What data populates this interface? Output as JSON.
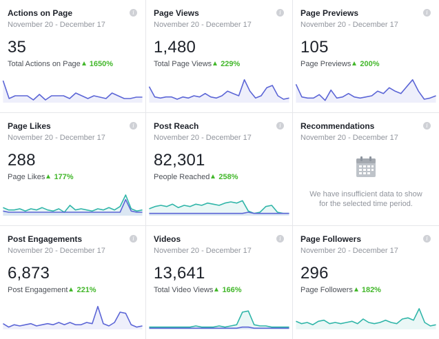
{
  "cards": [
    {
      "title": "Actions on Page",
      "date_range": "November 20 - December 17",
      "value": "35",
      "metric_label": "Total Actions on Page",
      "change": "1650%",
      "sparkline_series": [
        {
          "color": "#5b65d6",
          "values": [
            16,
            3,
            5,
            5,
            5,
            2,
            6,
            2,
            5,
            5,
            5,
            3,
            7,
            5,
            3,
            5,
            4,
            3,
            7,
            5,
            3,
            3,
            4,
            4
          ]
        }
      ],
      "ymax": 20
    },
    {
      "title": "Page Views",
      "date_range": "November 20 - December 17",
      "value": "1,480",
      "metric_label": "Total Page Views",
      "change": "229%",
      "sparkline_series": [
        {
          "color": "#5b65d6",
          "values": [
            14,
            5,
            4,
            5,
            5,
            3,
            5,
            4,
            6,
            5,
            8,
            5,
            4,
            6,
            10,
            8,
            6,
            20,
            10,
            4,
            6,
            13,
            15,
            6,
            3,
            4
          ]
        }
      ],
      "ymax": 24
    },
    {
      "title": "Page Previews",
      "date_range": "November 20 - December 17",
      "value": "105",
      "metric_label": "Page Previews",
      "change": "200%",
      "sparkline_series": [
        {
          "color": "#5b65d6",
          "values": [
            16,
            5,
            4,
            4,
            7,
            2,
            11,
            4,
            5,
            8,
            5,
            4,
            5,
            6,
            10,
            8,
            13,
            10,
            8,
            14,
            20,
            10,
            3,
            4,
            6
          ]
        }
      ],
      "ymax": 24
    },
    {
      "title": "Page Likes",
      "date_range": "November 20 - December 17",
      "value": "288",
      "metric_label": "Page Likes",
      "change": "177%",
      "sparkline_series": [
        {
          "color": "#2fb5a8",
          "values": [
            7,
            5,
            5,
            6,
            4,
            6,
            5,
            7,
            5,
            4,
            6,
            3,
            9,
            5,
            6,
            5,
            4,
            6,
            5,
            7,
            5,
            8,
            18,
            6,
            4,
            5
          ]
        },
        {
          "color": "#5b65d6",
          "values": [
            4,
            3,
            3,
            3,
            3,
            3,
            3,
            3,
            3,
            3,
            3,
            3,
            3,
            3,
            3,
            3,
            3,
            3,
            3,
            3,
            3,
            3,
            14,
            4,
            3,
            3
          ]
        }
      ],
      "ymax": 24
    },
    {
      "title": "Post Reach",
      "date_range": "November 20 - December 17",
      "value": "82,301",
      "metric_label": "People Reached",
      "change": "258%",
      "sparkline_series": [
        {
          "color": "#2fb5a8",
          "values": [
            6,
            8,
            9,
            8,
            10,
            7,
            9,
            8,
            10,
            9,
            11,
            10,
            9,
            11,
            12,
            11,
            13,
            4,
            2,
            3,
            8,
            9,
            3,
            2,
            2
          ]
        },
        {
          "color": "#5b65d6",
          "values": [
            2,
            2,
            2,
            2,
            2,
            2,
            2,
            2,
            2,
            2,
            2,
            2,
            2,
            2,
            2,
            2,
            2,
            3,
            2,
            2,
            2,
            2,
            2,
            2,
            2
          ]
        }
      ],
      "ymax": 24
    },
    {
      "title": "Recommendations",
      "date_range": "November 20 - December 17",
      "empty_message": "We have insufficient data to show for the selected time period.",
      "icon": "calendar-icon"
    },
    {
      "title": "Post Engagements",
      "date_range": "November 20 - December 17",
      "value": "6,873",
      "metric_label": "Post Engagement",
      "change": "221%",
      "sparkline_series": [
        {
          "color": "#5b65d6",
          "values": [
            5,
            2,
            4,
            3,
            4,
            5,
            3,
            4,
            5,
            4,
            6,
            4,
            6,
            4,
            4,
            6,
            5,
            20,
            5,
            3,
            6,
            15,
            14,
            4,
            2,
            3
          ]
        }
      ],
      "ymax": 24
    },
    {
      "title": "Videos",
      "date_range": "November 20 - December 17",
      "value": "13,641",
      "metric_label": "Total Video Views",
      "change": "166%",
      "sparkline_series": [
        {
          "color": "#2fb5a8",
          "values": [
            2,
            2,
            2,
            2,
            2,
            2,
            2,
            2,
            3,
            2,
            2,
            2,
            3,
            2,
            3,
            4,
            15,
            16,
            4,
            3,
            3,
            2,
            2,
            2,
            2
          ]
        },
        {
          "color": "#5b65d6",
          "values": [
            1,
            1,
            1,
            1,
            1,
            1,
            1,
            1,
            1,
            1,
            1,
            1,
            1,
            1,
            1,
            1,
            2,
            2,
            1,
            1,
            1,
            1,
            1,
            1,
            1
          ]
        }
      ],
      "ymax": 24
    },
    {
      "title": "Page Followers",
      "date_range": "November 20 - December 17",
      "value": "296",
      "metric_label": "Page Followers",
      "change": "182%",
      "sparkline_series": [
        {
          "color": "#2fb5a8",
          "values": [
            7,
            5,
            6,
            4,
            7,
            8,
            5,
            6,
            5,
            6,
            7,
            5,
            9,
            6,
            5,
            6,
            8,
            6,
            5,
            9,
            10,
            8,
            18,
            6,
            3,
            4
          ]
        }
      ],
      "ymax": 24
    }
  ]
}
